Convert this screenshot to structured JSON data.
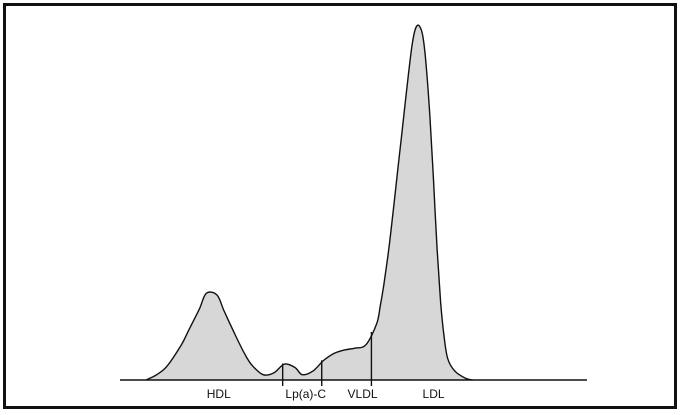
{
  "chart_data": {
    "type": "area",
    "title": "",
    "xlabel": "",
    "ylabel": "",
    "grid": false,
    "legend": "none",
    "fill_color": "#d7d7d7",
    "line_color": "#111111",
    "ylim": [
      0,
      1
    ],
    "xlim": [
      0,
      1
    ],
    "x": [
      0.0,
      0.03,
      0.06,
      0.1,
      0.12,
      0.15,
      0.17,
      0.2,
      0.22,
      0.25,
      0.28,
      0.3,
      0.33,
      0.36,
      0.39,
      0.42,
      0.44,
      0.47,
      0.5,
      0.53,
      0.56,
      0.59,
      0.62,
      0.65,
      0.66,
      0.67,
      0.68,
      0.69,
      0.7,
      0.71,
      0.72,
      0.73,
      0.74,
      0.75,
      0.76,
      0.77,
      0.78,
      0.79,
      0.8,
      0.81,
      0.82,
      0.83,
      0.84,
      0.85,
      0.87,
      0.9,
      0.92
    ],
    "y": [
      0.0,
      0.015,
      0.04,
      0.1,
      0.14,
      0.2,
      0.245,
      0.24,
      0.195,
      0.13,
      0.07,
      0.04,
      0.015,
      0.02,
      0.045,
      0.035,
      0.015,
      0.025,
      0.055,
      0.075,
      0.085,
      0.09,
      0.1,
      0.16,
      0.21,
      0.27,
      0.34,
      0.42,
      0.51,
      0.6,
      0.69,
      0.78,
      0.87,
      0.95,
      0.995,
      1.0,
      0.97,
      0.88,
      0.74,
      0.56,
      0.37,
      0.22,
      0.12,
      0.06,
      0.025,
      0.005,
      0.0
    ],
    "bands": [
      {
        "label": "HDL",
        "center": 0.205
      },
      {
        "label": "Lp(a)-C",
        "center": 0.45
      },
      {
        "label": "VLDL",
        "center": 0.61
      },
      {
        "label": "LDL",
        "center": 0.81
      }
    ],
    "dividers": [
      0.385,
      0.495,
      0.635
    ]
  }
}
